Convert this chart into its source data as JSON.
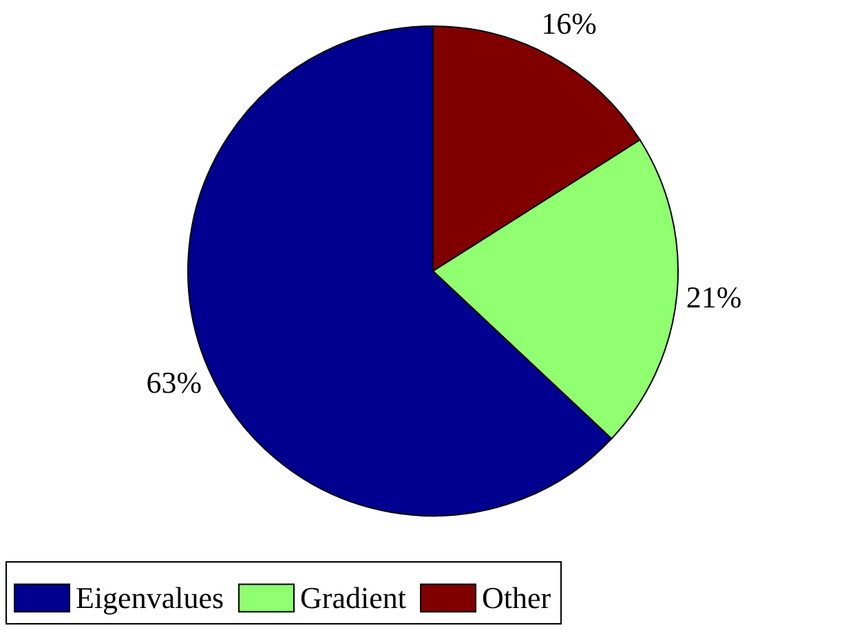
{
  "chart_data": {
    "type": "pie",
    "categories": [
      "Eigenvalues",
      "Gradient",
      "Other"
    ],
    "values": [
      63,
      21,
      16
    ],
    "colors": [
      "#000090",
      "#90ff70",
      "#800000"
    ],
    "value_labels": [
      "63%",
      "21%",
      "16%"
    ],
    "legend": "bottom"
  }
}
